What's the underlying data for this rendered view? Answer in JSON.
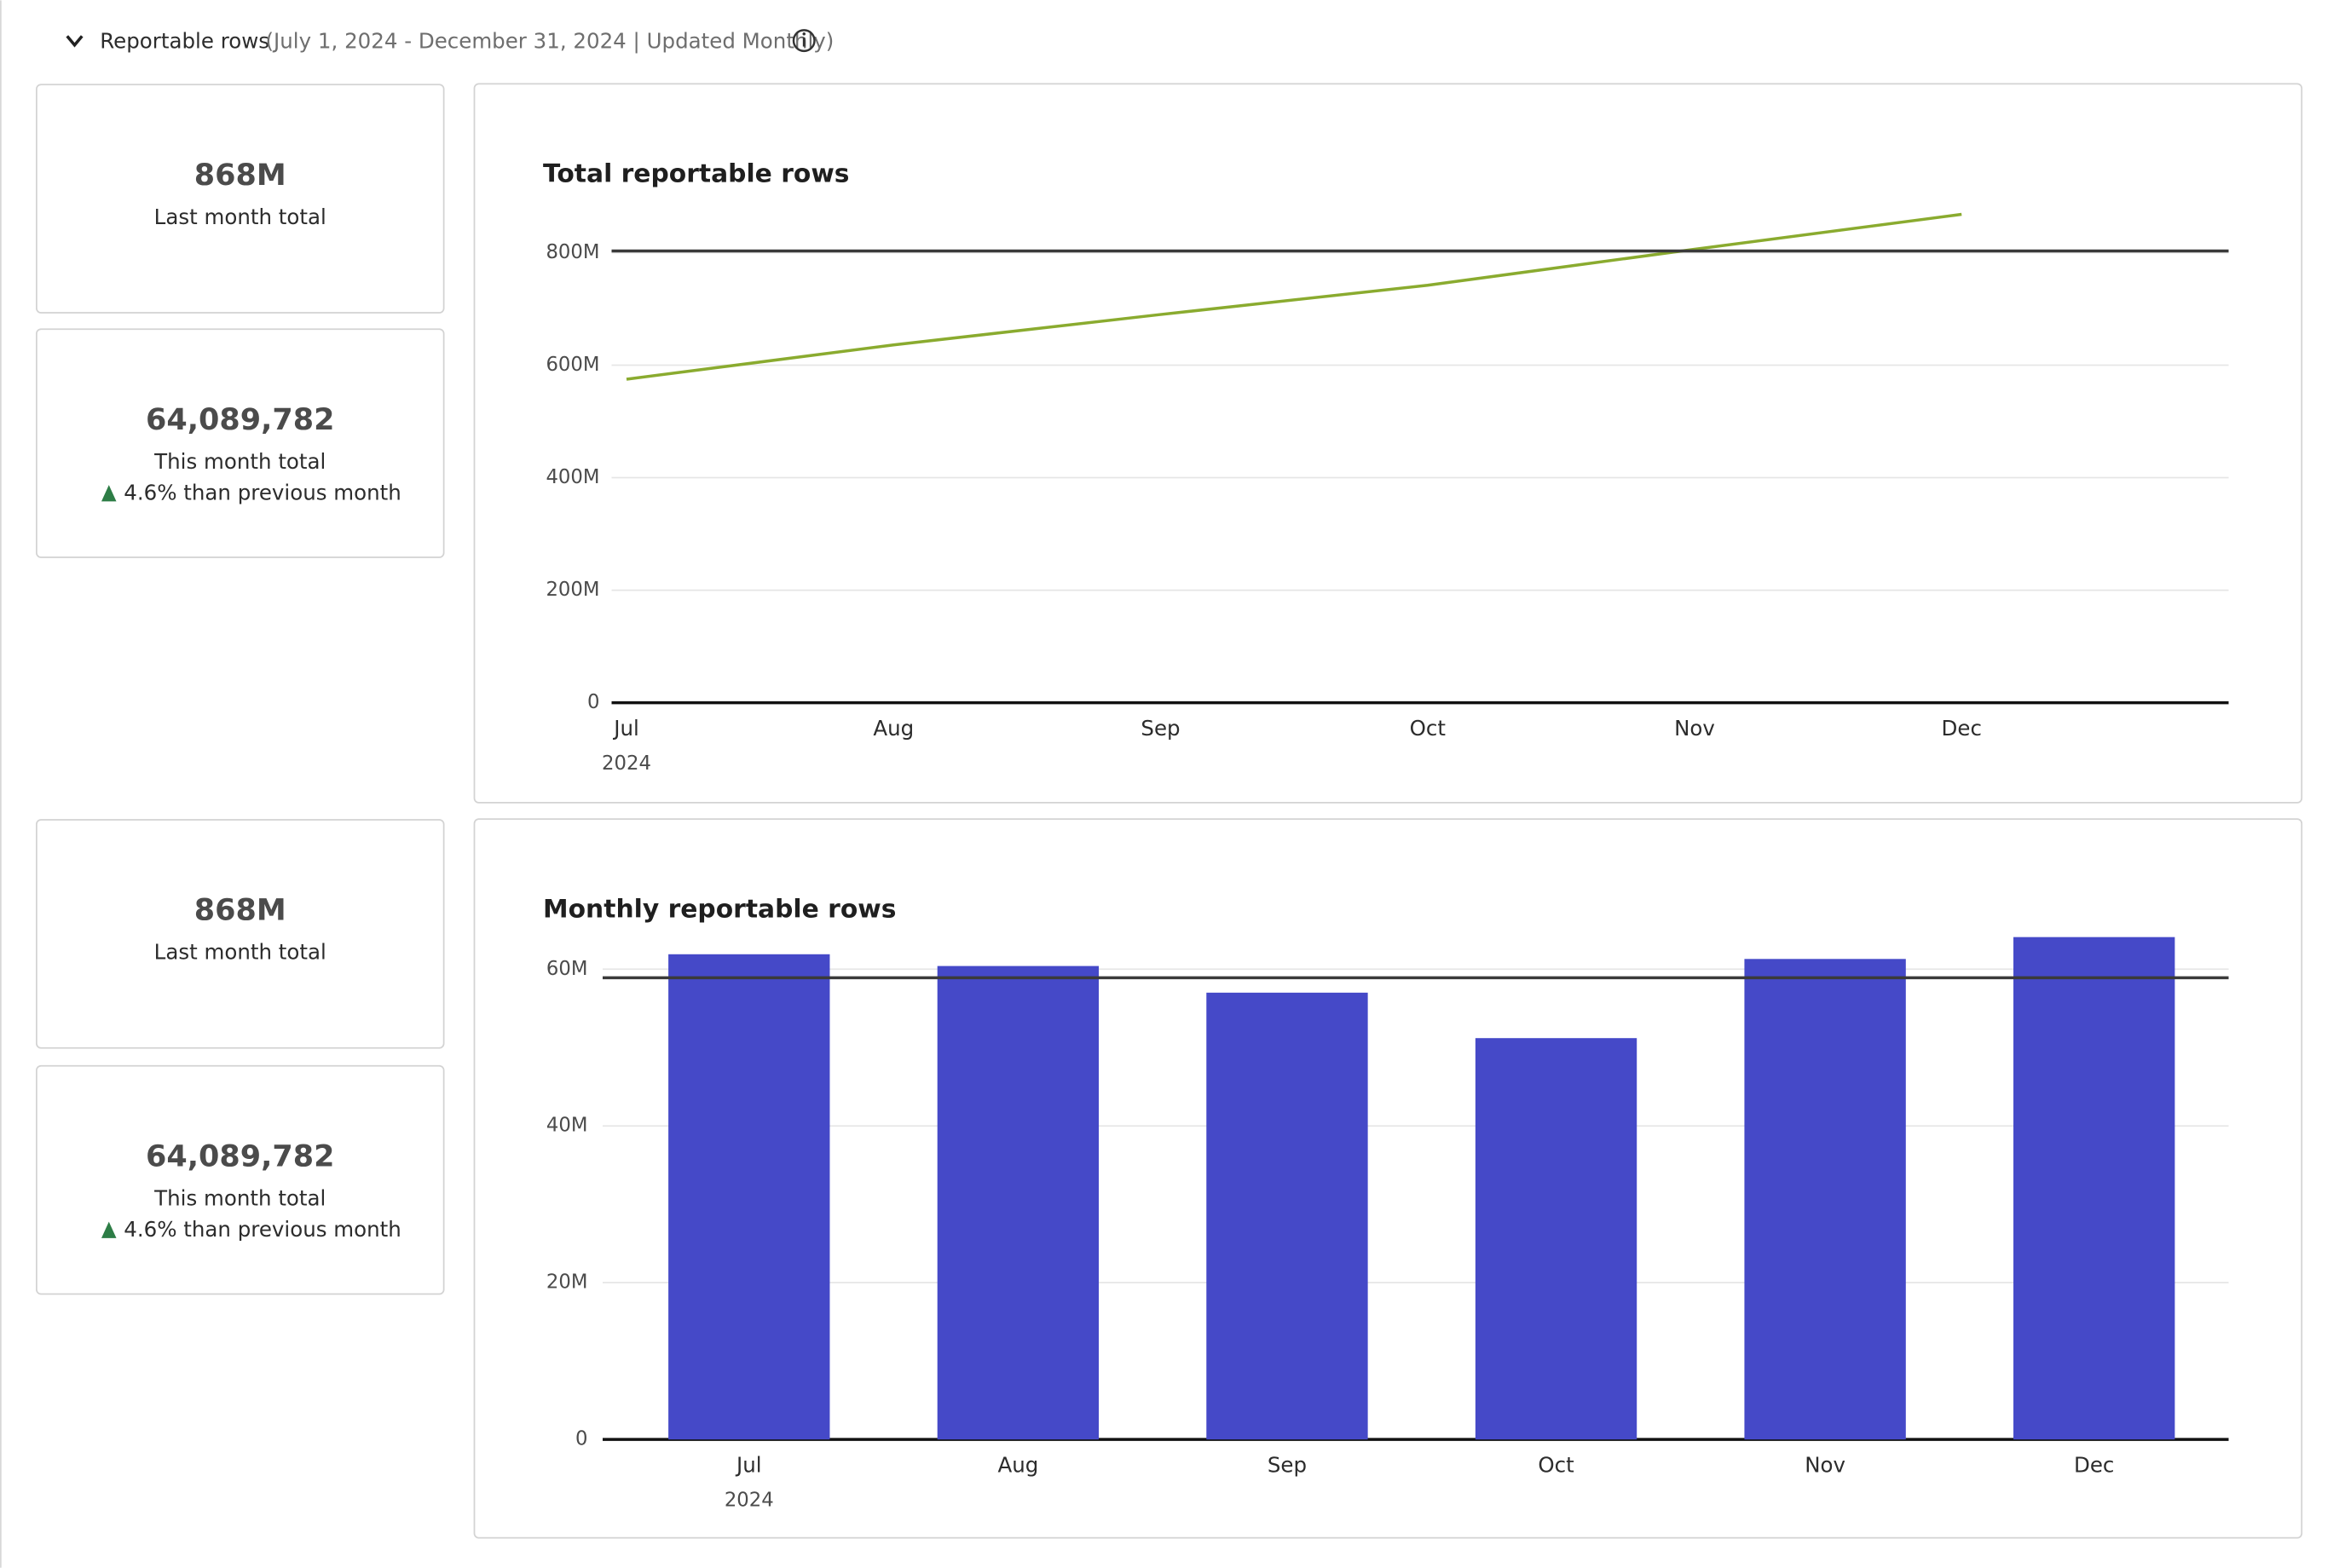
{
  "header": {
    "title": "Reportable rows",
    "subtitle": "(July 1, 2024 - December 31, 2024 | Updated Monthly)"
  },
  "cards": [
    [
      {
        "value": "868M",
        "label": "Last month total"
      },
      {
        "value": "64,089,782",
        "label": "This month total",
        "change": "4.6% than previous month"
      }
    ],
    [
      {
        "value": "868M",
        "label": "Last month total"
      },
      {
        "value": "64,089,782",
        "label": "This month total",
        "change": "4.6% than previous month"
      }
    ]
  ],
  "chart_data": [
    {
      "type": "line",
      "title": "Total reportable rows",
      "categories": [
        "Jul",
        "Aug",
        "Sep",
        "Oct",
        "Nov",
        "Dec"
      ],
      "year": "2024",
      "values": [
        575,
        636,
        690,
        742,
        806,
        868
      ],
      "color": "#8aab2f",
      "ylim": [
        0,
        880
      ],
      "yticks": [
        0,
        {
          "value": 200,
          "label": "200M"
        },
        {
          "value": 400,
          "label": "400M"
        },
        {
          "value": 600,
          "label": "600M"
        },
        {
          "value": 800,
          "label": "800M"
        }
      ],
      "reference_line": 803,
      "grid": true
    },
    {
      "type": "bar",
      "title": "Monthly reportable rows",
      "categories": [
        "Jul",
        "Aug",
        "Sep",
        "Oct",
        "Nov",
        "Dec"
      ],
      "year": "2024",
      "values": [
        61.9,
        60.4,
        57.0,
        51.2,
        61.3,
        64.09
      ],
      "color": "#4549c8",
      "ylim": [
        0,
        64.5
      ],
      "yticks": [
        0,
        {
          "value": 20,
          "label": "20M"
        },
        {
          "value": 40,
          "label": "40M"
        },
        {
          "value": 60,
          "label": "60M"
        }
      ],
      "reference_line": 58.9,
      "grid": true
    }
  ]
}
